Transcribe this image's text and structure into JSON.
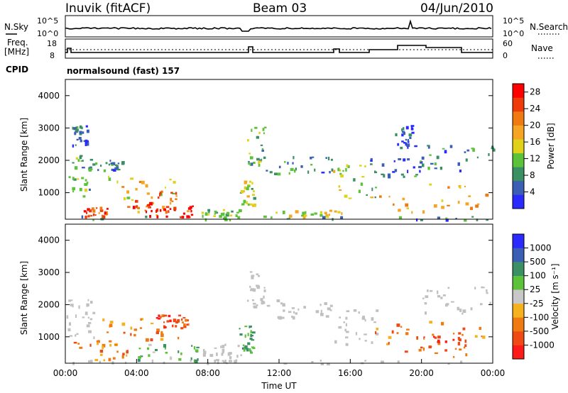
{
  "header": {
    "station": "Inuvik (fitACF)",
    "beam": "Beam 03",
    "date": "04/Jun/2010"
  },
  "noise_panel": {
    "left_label": "N.Sky",
    "right_label": "N.Search",
    "left_ticks": [
      "10^5",
      "10^0"
    ],
    "right_ticks": [
      "10^5",
      "10^0"
    ]
  },
  "freq_panel": {
    "left_label_line1": "Freq.",
    "left_label_line2": "[MHz]",
    "right_label": "Nave",
    "left_ticks": [
      "18",
      "8"
    ],
    "right_ticks": [
      "60",
      "0"
    ]
  },
  "cpid": {
    "label": "CPID",
    "text": "normalsound (fast) 157"
  },
  "colors": {
    "power_scale": [
      "#2a2aff",
      "#3b5fb5",
      "#3a8f63",
      "#5cc23a",
      "#e0d21a",
      "#f5a523",
      "#f07a12",
      "#ef3a0a",
      "#ff0000"
    ],
    "velocity_scale": [
      "#ff1a1a",
      "#f04a14",
      "#f07a12",
      "#f5b21e",
      "#c8c8c8",
      "#5cc23a",
      "#3a8f63",
      "#3b5fb5",
      "#2a2aff"
    ],
    "ground_scatter": "#c0c0c0"
  },
  "chart_data": [
    {
      "type": "heatmap",
      "name": "power-panel",
      "xlabel": "Time UT",
      "ylabel": "Slant Range [km]",
      "xlim_hours": [
        0,
        24
      ],
      "ylim_km": [
        180,
        4500
      ],
      "y_ticks": [
        "1000",
        "2000",
        "3000",
        "4000"
      ],
      "colorbar": {
        "label": "Power [dB]",
        "ticks": [
          "4",
          "8",
          "12",
          "16",
          "20",
          "24",
          "28"
        ],
        "range": [
          0,
          30
        ]
      },
      "echo_regions": [
        {
          "t0": 0.0,
          "t1": 1.6,
          "r0": 900,
          "r1": 2200,
          "level": 10
        },
        {
          "t0": 0.3,
          "t1": 1.2,
          "r0": 2400,
          "r1": 3100,
          "level": 6
        },
        {
          "t0": 1.3,
          "t1": 3.2,
          "r0": 1700,
          "r1": 2050,
          "level": 7
        },
        {
          "t0": 2.2,
          "t1": 7.0,
          "r0": 300,
          "r1": 1600,
          "level": 17
        },
        {
          "t0": 3.4,
          "t1": 6.2,
          "r0": 350,
          "r1": 1100,
          "level": 22
        },
        {
          "t0": 4.5,
          "t1": 7.2,
          "r0": 260,
          "r1": 650,
          "level": 29
        },
        {
          "t0": 1.0,
          "t1": 2.4,
          "r0": 260,
          "r1": 600,
          "level": 24
        },
        {
          "t0": 7.5,
          "t1": 9.8,
          "r0": 250,
          "r1": 500,
          "level": 12
        },
        {
          "t0": 9.8,
          "t1": 10.6,
          "r0": 600,
          "r1": 1400,
          "level": 14
        },
        {
          "t0": 10.2,
          "t1": 11.2,
          "r0": 1900,
          "r1": 3100,
          "level": 10
        },
        {
          "t0": 11.2,
          "t1": 15.0,
          "r0": 1600,
          "r1": 2200,
          "level": 6
        },
        {
          "t0": 11.5,
          "t1": 15.5,
          "r0": 260,
          "r1": 500,
          "level": 15
        },
        {
          "t0": 15.0,
          "t1": 17.5,
          "r0": 800,
          "r1": 1900,
          "level": 12
        },
        {
          "t0": 17.0,
          "t1": 20.0,
          "r0": 1500,
          "r1": 2100,
          "level": 6
        },
        {
          "t0": 17.0,
          "t1": 24.0,
          "r0": 350,
          "r1": 1400,
          "level": 19
        },
        {
          "t0": 18.5,
          "t1": 19.6,
          "r0": 2400,
          "r1": 3100,
          "level": 5
        },
        {
          "t0": 20.0,
          "t1": 24.0,
          "r0": 1700,
          "r1": 2600,
          "level": 7
        },
        {
          "t0": 0.0,
          "t1": 24.0,
          "r0": 180,
          "r1": 300,
          "level": 8
        }
      ]
    },
    {
      "type": "heatmap",
      "name": "velocity-panel",
      "xlabel": "Time UT",
      "ylabel": "Slant Range [km]",
      "xlim_hours": [
        0,
        24
      ],
      "ylim_km": [
        180,
        4500
      ],
      "x_ticks": [
        "00:00",
        "04:00",
        "08:00",
        "12:00",
        "16:00",
        "20:00",
        "00:00"
      ],
      "y_ticks": [
        "1000",
        "2000",
        "3000",
        "4000"
      ],
      "colorbar": {
        "label": "Velocity [m s⁻¹]",
        "ticks": [
          "1000",
          "500",
          "100",
          "25",
          "-25",
          "-100",
          "-500",
          "-1000"
        ]
      },
      "echo_regions": [
        {
          "t0": 0.0,
          "t1": 1.6,
          "r0": 900,
          "r1": 2200,
          "level": "gs"
        },
        {
          "t0": 0.0,
          "t1": 3.5,
          "r0": 300,
          "r1": 900,
          "level": "-100"
        },
        {
          "t0": 2.0,
          "t1": 7.0,
          "r0": 900,
          "r1": 1600,
          "level": "-100"
        },
        {
          "t0": 4.0,
          "t1": 7.5,
          "r0": 250,
          "r1": 800,
          "level": "25"
        },
        {
          "t0": 5.0,
          "t1": 7.0,
          "r0": 1300,
          "r1": 1700,
          "level": "-500"
        },
        {
          "t0": 7.5,
          "t1": 10.0,
          "r0": 250,
          "r1": 800,
          "level": "gs"
        },
        {
          "t0": 9.7,
          "t1": 10.5,
          "r0": 500,
          "r1": 1400,
          "level": "100"
        },
        {
          "t0": 10.2,
          "t1": 11.2,
          "r0": 1900,
          "r1": 3100,
          "level": "gs"
        },
        {
          "t0": 11.2,
          "t1": 15.0,
          "r0": 1600,
          "r1": 2200,
          "level": "gs"
        },
        {
          "t0": 15.0,
          "t1": 17.5,
          "r0": 800,
          "r1": 1900,
          "level": "gs"
        },
        {
          "t0": 17.0,
          "t1": 23.5,
          "r0": 400,
          "r1": 1500,
          "level": "-100"
        },
        {
          "t0": 19.0,
          "t1": 22.5,
          "r0": 600,
          "r1": 1200,
          "level": "-500"
        },
        {
          "t0": 20.0,
          "t1": 24.0,
          "r0": 1700,
          "r1": 2600,
          "level": "gs"
        },
        {
          "t0": 0.0,
          "t1": 24.0,
          "r0": 180,
          "r1": 300,
          "level": "gs"
        }
      ]
    }
  ]
}
